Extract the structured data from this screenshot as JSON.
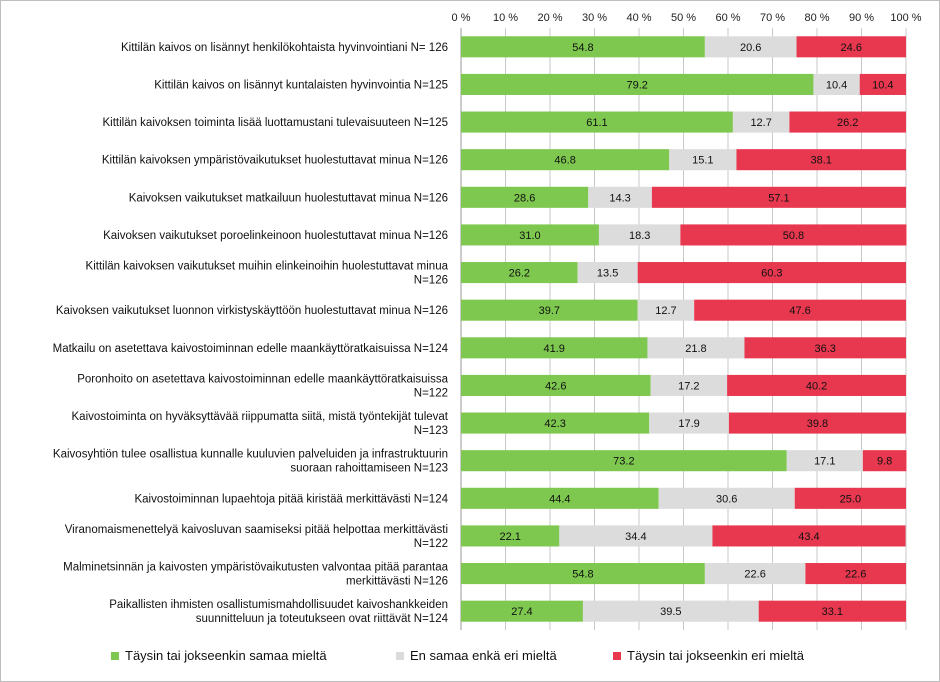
{
  "chart_data": {
    "type": "bar",
    "orientation": "horizontal",
    "stacked": true,
    "xlim": [
      0,
      100
    ],
    "xticks": [
      "0 %",
      "10 %",
      "20 %",
      "30 %",
      "40 %",
      "50 %",
      "60 %",
      "70 %",
      "80 %",
      "90 %",
      "100 %"
    ],
    "grid": true,
    "legend_position": "bottom",
    "categories": [
      [
        "Kittilän kaivos on lisännyt henkilökohtaista hyvinvointiani N= 126"
      ],
      [
        "Kittilän kaivos on lisännyt kuntalaisten hyvinvointia N=125"
      ],
      [
        "Kittilän kaivoksen toiminta lisää luottamustani tulevaisuuteen N=125"
      ],
      [
        "Kittilän kaivoksen ympäristövaikutukset huolestuttavat minua N=126"
      ],
      [
        "Kaivoksen vaikutukset matkailuun huolestuttavat minua N=126"
      ],
      [
        "Kaivoksen vaikutukset poroelinkeinoon huolestuttavat minua N=126"
      ],
      [
        "Kittilän kaivoksen vaikutukset muihin elinkeinoihin huolestuttavat minua",
        "N=126"
      ],
      [
        "Kaivoksen vaikutukset luonnon virkistyskäyttöön huolestuttavat minua N=126"
      ],
      [
        "Matkailu on asetettava kaivostoiminnan edelle maankäyttöratkaisuissa N=124"
      ],
      [
        "Poronhoito on asetettava kaivostoiminnan edelle maankäyttöratkaisuissa",
        "N=122"
      ],
      [
        "Kaivostoiminta on hyväksyttävää riippumatta siitä, mistä työntekijät tulevat",
        "N=123"
      ],
      [
        "Kaivosyhtiön tulee osallistua kunnalle kuuluvien palveluiden ja infrastruktuurin",
        "suoraan rahoittamiseen N=123"
      ],
      [
        "Kaivostoiminnan lupaehtoja pitää kiristää merkittävästi N=124"
      ],
      [
        "Viranomaismenettelyä kaivosluvan saamiseksi pitää helpottaa merkittävästi",
        "N=122"
      ],
      [
        "Malminetsinnän ja kaivosten ympäristövaikutusten valvontaa pitää parantaa",
        "merkittävästi N=126"
      ],
      [
        "Paikallisten ihmisten osallistumismahdollisuudet kaivoshankkeiden",
        "suunnitteluun ja toteutukseen ovat riittävät N=124"
      ]
    ],
    "series": [
      {
        "name": "Täysin tai jokseenkin samaa mieltä",
        "color": "#7ec850",
        "values": [
          54.8,
          79.2,
          61.1,
          46.8,
          28.6,
          31.0,
          26.2,
          39.7,
          41.9,
          42.6,
          42.3,
          73.2,
          44.4,
          22.1,
          54.8,
          27.4
        ],
        "labels": [
          "54.8",
          "79.2",
          "61.1",
          "46.8",
          "28.6",
          "31.0",
          "26.2",
          "39.7",
          "41.9",
          "42.6",
          "42.3",
          "73.2",
          "44.4",
          "22.1",
          "54.8",
          "27.4"
        ]
      },
      {
        "name": "En samaa enkä eri mieltä",
        "color": "#dcdcdc",
        "values": [
          20.6,
          10.4,
          12.7,
          15.1,
          14.3,
          18.3,
          13.5,
          12.7,
          21.8,
          17.2,
          17.9,
          17.1,
          30.6,
          34.4,
          22.6,
          39.5
        ],
        "labels": [
          "20.6",
          "10.4",
          "12.7",
          "15.1",
          "14.3",
          "18.3",
          "13.5",
          "12.7",
          "21.8",
          "17.2",
          "17.9",
          "17.1",
          "30.6",
          "34.4",
          "22.6",
          "39.5"
        ]
      },
      {
        "name": "Täysin tai jokseenkin eri mieltä",
        "color": "#e8384f",
        "values": [
          24.6,
          10.4,
          26.2,
          38.1,
          57.1,
          50.8,
          60.3,
          47.6,
          36.3,
          40.2,
          39.8,
          9.8,
          25.0,
          43.4,
          22.6,
          33.1
        ],
        "labels": [
          "24.6",
          "10.4",
          "26.2",
          "38.1",
          "57.1",
          "50.8",
          "60.3",
          "47.6",
          "36.3",
          "40.2",
          "39.8",
          "9.8",
          "25.0",
          "43.4",
          "22.6",
          "33.1"
        ]
      }
    ]
  }
}
